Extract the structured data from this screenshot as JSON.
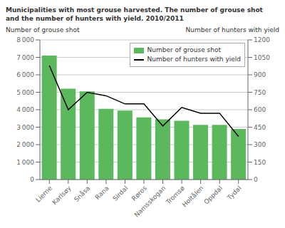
{
  "chart_data": {
    "type": "bar",
    "title": "Municipalities with most grouse harvested. The number of grouse shot",
    "subtitle": "and the number of hunters with yield. 2010/2011",
    "categories": [
      "Lierne",
      "Karlsøy",
      "Snåsa",
      "Rana",
      "Sirdal",
      "Røros",
      "Namsskogan",
      "Tromsø",
      "Holtålen",
      "Oppdal",
      "Tydal"
    ],
    "series": [
      {
        "name": "Number of grouse shot",
        "type": "bar",
        "color": "#5cb85c",
        "values": [
          7100,
          5200,
          5050,
          4050,
          3950,
          3560,
          3450,
          3370,
          3130,
          3130,
          2900
        ]
      },
      {
        "name": "Number of hunters with yield",
        "type": "line",
        "color": "#000000",
        "axis": "y2",
        "values": [
          980,
          600,
          750,
          720,
          650,
          650,
          460,
          620,
          570,
          570,
          370
        ]
      }
    ],
    "ylabel": "Number of grouse shot",
    "y2label": "Number of hunters with yield",
    "ylim": [
      0,
      8000
    ],
    "yticks": [
      0,
      {
        "value": 1000,
        "label": "1 000"
      },
      {
        "value": 2000,
        "label": "2 000"
      },
      {
        "value": 3000,
        "label": "3 000"
      },
      {
        "value": 4000,
        "label": "4 000"
      },
      {
        "value": 5000,
        "label": "5 000"
      },
      {
        "value": 6000,
        "label": "6 000"
      },
      {
        "value": 7000,
        "label": "7 000"
      },
      {
        "value": 8000,
        "label": "8 000"
      }
    ],
    "y2lim": [
      0,
      1200
    ],
    "y2ticks": [
      0,
      150,
      300,
      450,
      600,
      750,
      900,
      1050,
      1200
    ],
    "grid": true,
    "legend": "upper right"
  }
}
